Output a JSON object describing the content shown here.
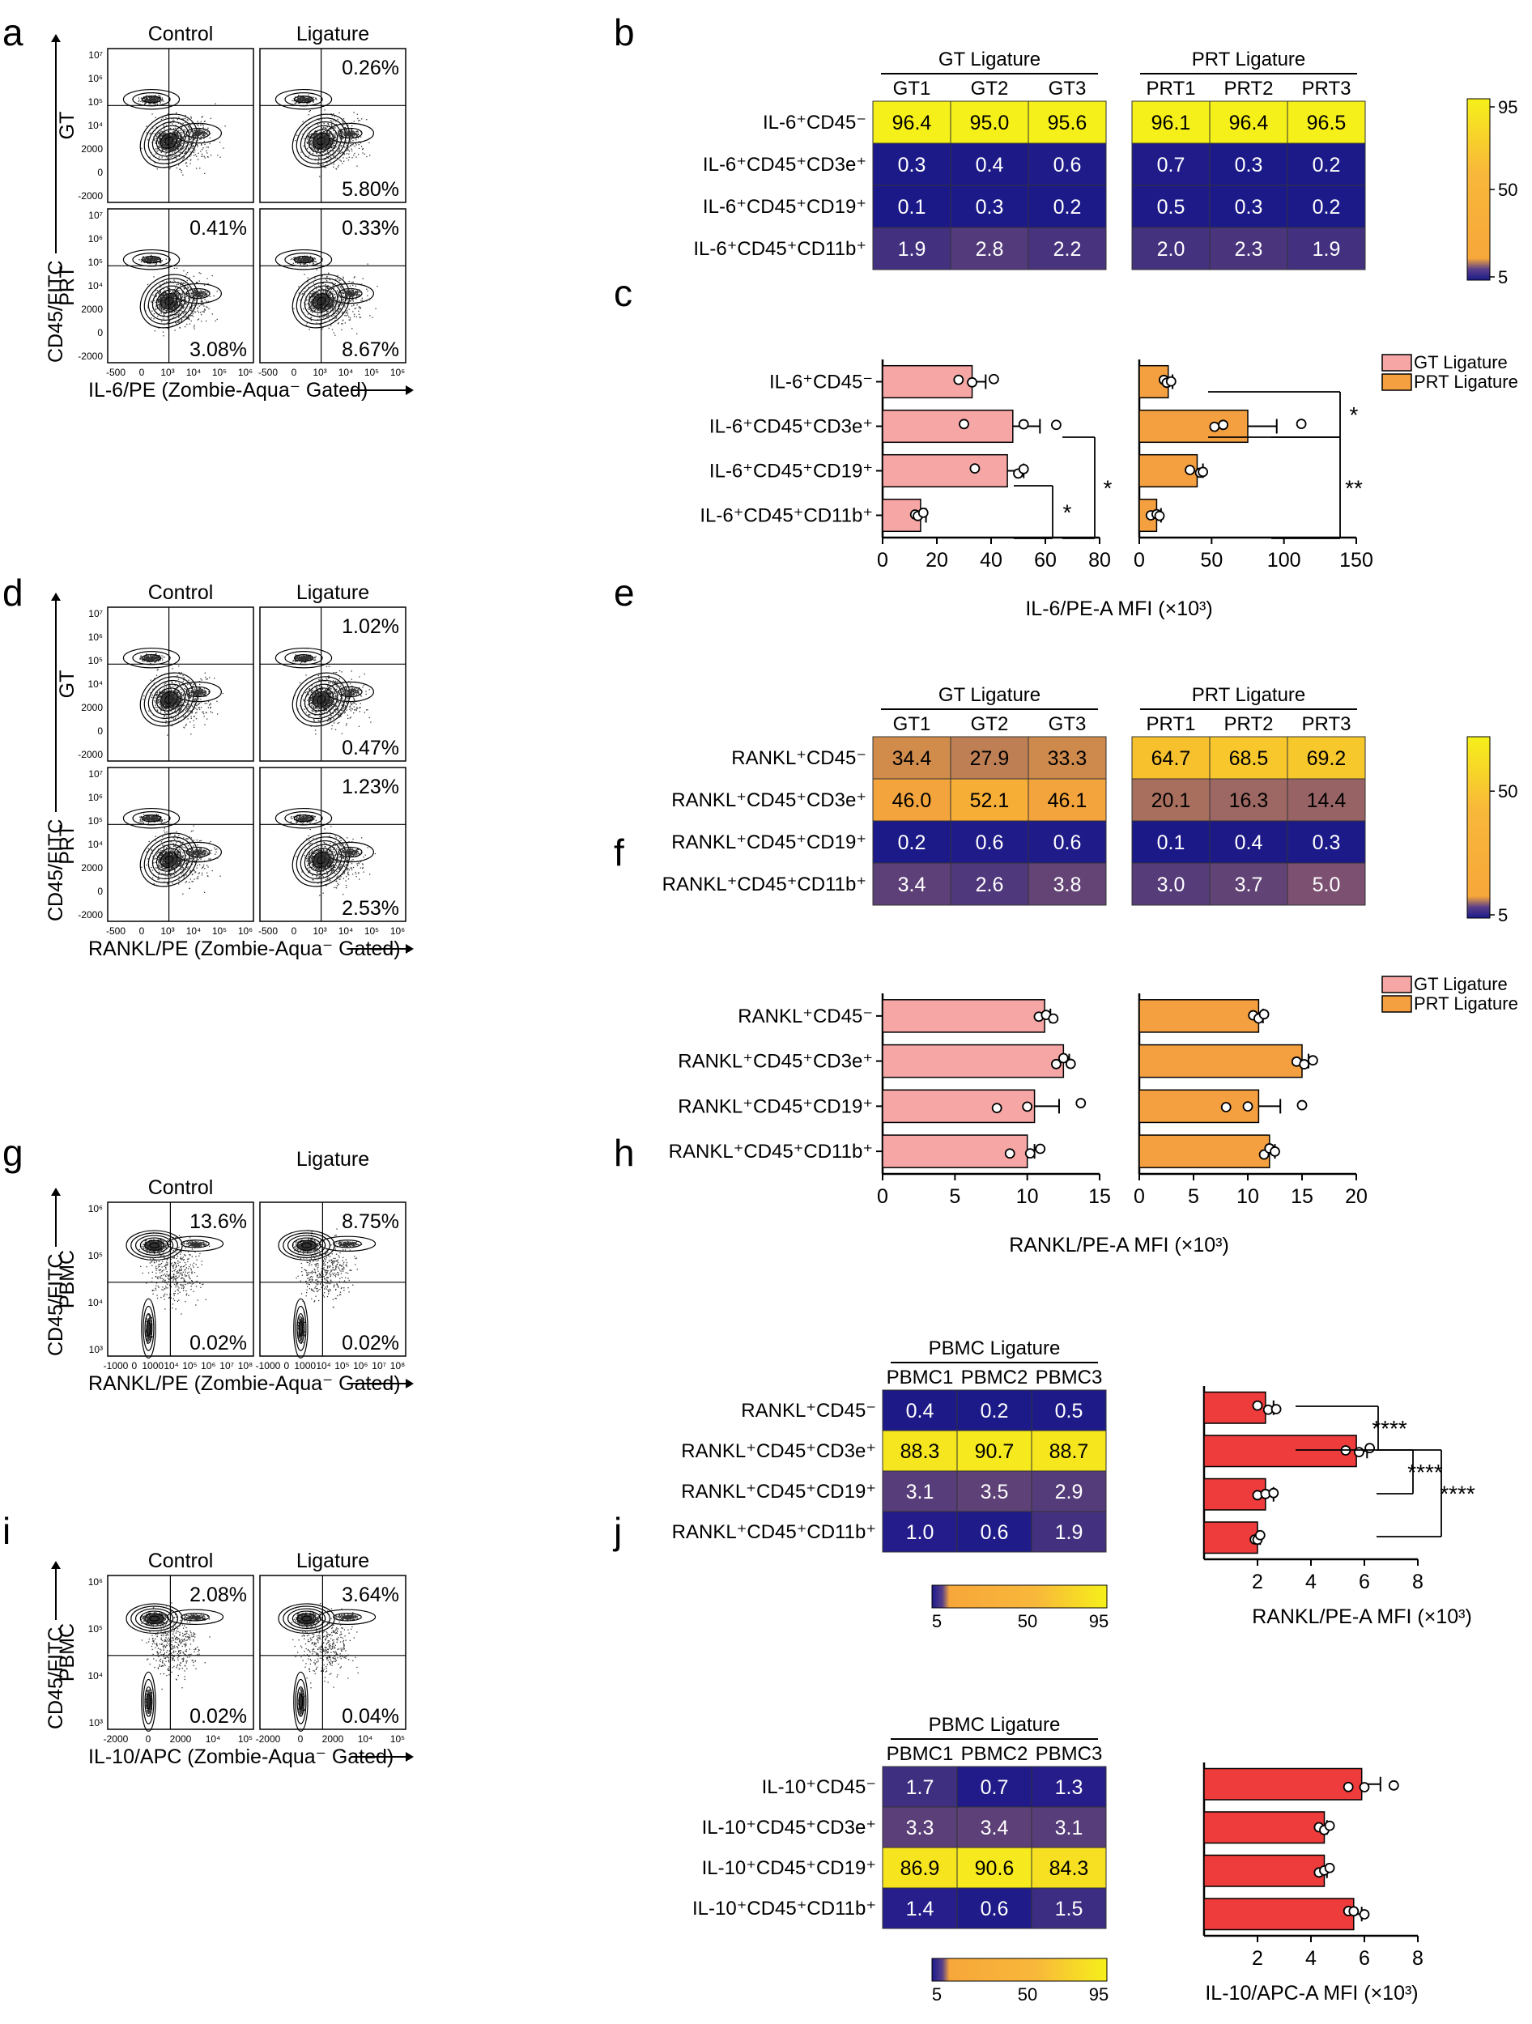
{
  "colors": {
    "gt_bar": "#f7a6a6",
    "prt_bar": "#f5a040",
    "pbmc_bar": "#ee3b3b",
    "heat_low": "#1b1b8a",
    "heat_mid": "#f7a73a",
    "heat_high": "#f6f01a"
  },
  "panel_letters": [
    "a",
    "b",
    "c",
    "d",
    "e",
    "f",
    "g",
    "h",
    "i",
    "j"
  ],
  "flow_sections": [
    {
      "letter": "a",
      "headers": [
        "Control",
        "Ligature"
      ],
      "rows": [
        "GT",
        "PRT"
      ],
      "xlabel": "IL-6/PE (Zombie-Aqua⁻ Gated)",
      "ylabel": "CD45/FITC",
      "yticks": [
        "10⁷",
        "10⁶",
        "10⁵",
        "10⁴",
        "2000",
        "0",
        "-2000"
      ],
      "xticks": [
        "-500",
        "0",
        "10³",
        "10⁴",
        "10⁵",
        "10⁶"
      ],
      "percents": [
        [
          "",
          "",
          "",
          ""
        ],
        [
          "0.26%",
          "",
          "",
          "5.80%"
        ],
        [
          "0.41%",
          "",
          "",
          "3.08%"
        ],
        [
          "0.33%",
          "",
          "",
          "8.67%"
        ]
      ]
    },
    {
      "letter": "d",
      "headers": [
        "Control",
        "Ligature"
      ],
      "rows": [
        "GT",
        "PRT"
      ],
      "xlabel": "RANKL/PE (Zombie-Aqua⁻ Gated)",
      "ylabel": "CD45/FITC",
      "yticks": [
        "10⁷",
        "10⁶",
        "10⁵",
        "10⁴",
        "2000",
        "0",
        "-2000"
      ],
      "xticks": [
        "-500",
        "0",
        "10³",
        "10⁴",
        "10⁵",
        "10⁶"
      ],
      "percents": [
        [
          "",
          "",
          "",
          ""
        ],
        [
          "1.02%",
          "",
          "",
          "0.47%"
        ],
        [
          "",
          "",
          "",
          ""
        ],
        [
          "1.23%",
          "",
          "",
          "2.53%"
        ]
      ]
    },
    {
      "letter": "g",
      "headers": [
        "Control",
        "Ligature"
      ],
      "rows": [
        "PBMC"
      ],
      "xlabel": "RANKL/PE (Zombie-Aqua⁻ Gated)",
      "ylabel": "CD45/FITC",
      "yticks": [
        "10⁶",
        "10⁵",
        "10⁴",
        "10³"
      ],
      "xticks": [
        "-1000",
        "0",
        "1000",
        "10⁴",
        "10⁵",
        "10⁶",
        "10⁷",
        "10⁸"
      ],
      "percents": [
        [
          "13.6%",
          "0.02%"
        ],
        [
          "8.75%",
          "0.02%"
        ]
      ]
    },
    {
      "letter": "i",
      "headers": [
        "Control",
        "Ligature"
      ],
      "rows": [
        "PBMC"
      ],
      "xlabel": "IL-10/APC (Zombie-Aqua⁻ Gated)",
      "ylabel": "CD45/FITC",
      "yticks": [
        "10⁶",
        "10⁵",
        "10⁴",
        "10³"
      ],
      "xticks": [
        "-2000",
        "0",
        "2000",
        "10⁴",
        "10⁵"
      ],
      "percents": [
        [
          "2.08%",
          "0.02%"
        ],
        [
          "3.64%",
          "0.04%"
        ]
      ]
    }
  ],
  "chart_data": [
    {
      "type": "heatmap",
      "panel": "b",
      "groups": [
        {
          "label": "GT Ligature",
          "columns": [
            "GT1",
            "GT2",
            "GT3"
          ]
        },
        {
          "label": "PRT Ligature",
          "columns": [
            "PRT1",
            "PRT2",
            "PRT3"
          ]
        }
      ],
      "rows": [
        "IL-6⁺CD45⁻",
        "IL-6⁺CD45⁺CD3e⁺",
        "IL-6⁺CD45⁺CD19⁺",
        "IL-6⁺CD45⁺CD11b⁺"
      ],
      "values": [
        [
          96.4,
          95.0,
          95.6,
          96.1,
          96.4,
          96.5
        ],
        [
          0.3,
          0.4,
          0.6,
          0.7,
          0.3,
          0.2
        ],
        [
          0.1,
          0.3,
          0.2,
          0.5,
          0.3,
          0.2
        ],
        [
          1.9,
          2.8,
          2.2,
          2.0,
          2.3,
          1.9
        ]
      ],
      "colorbar_ticks": [
        "95",
        "50",
        "5"
      ]
    },
    {
      "type": "bar",
      "panel": "c",
      "orientation": "horizontal",
      "categories": [
        "IL-6⁺CD45⁻",
        "IL-6⁺CD45⁺CD3e⁺",
        "IL-6⁺CD45⁺CD19⁺",
        "IL-6⁺CD45⁺CD11b⁺"
      ],
      "series": [
        {
          "name": "GT Ligature",
          "values": [
            33,
            48,
            46,
            14
          ],
          "err": [
            5,
            10,
            6,
            2
          ],
          "points": [
            [
              28,
              33,
              41
            ],
            [
              30,
              52,
              64
            ],
            [
              34,
              50,
              52
            ],
            [
              12,
              13,
              15
            ]
          ],
          "xlim": [
            0,
            80
          ],
          "xticks": [
            "0",
            "20",
            "40",
            "60",
            "80"
          ]
        },
        {
          "name": "PRT Ligature",
          "values": [
            20,
            75,
            40,
            12
          ],
          "err": [
            3,
            20,
            4,
            3
          ],
          "points": [
            [
              17,
              19,
              22
            ],
            [
              52,
              58,
              112
            ],
            [
              35,
              42,
              44
            ],
            [
              8,
              12,
              14
            ]
          ],
          "xlim": [
            0,
            150
          ],
          "xticks": [
            "0",
            "50",
            "100",
            "150"
          ]
        }
      ],
      "significance": [
        {
          "series": 0,
          "from": 1,
          "to": 3,
          "label": "*"
        },
        {
          "series": 0,
          "from": 2,
          "to": 3,
          "label": "*"
        },
        {
          "series": 1,
          "from": 0,
          "to": 1,
          "label": "*"
        },
        {
          "series": 1,
          "from": 1,
          "to": 3,
          "label": "**"
        }
      ],
      "xlabel": "IL-6/PE-A MFI (×10³)",
      "legend": "top-right"
    },
    {
      "type": "heatmap",
      "panel": "e",
      "groups": [
        {
          "label": "GT Ligature",
          "columns": [
            "GT1",
            "GT2",
            "GT3"
          ]
        },
        {
          "label": "PRT Ligature",
          "columns": [
            "PRT1",
            "PRT2",
            "PRT3"
          ]
        }
      ],
      "rows": [
        "RANKL⁺CD45⁻",
        "RANKL⁺CD45⁺CD3e⁺",
        "RANKL⁺CD45⁺CD19⁺",
        "RANKL⁺CD45⁺CD11b⁺"
      ],
      "values": [
        [
          34.4,
          27.9,
          33.3,
          64.7,
          68.5,
          69.2
        ],
        [
          46.0,
          52.1,
          46.1,
          20.1,
          16.3,
          14.4
        ],
        [
          0.2,
          0.6,
          0.6,
          0.1,
          0.4,
          0.3
        ],
        [
          3.4,
          2.6,
          3.8,
          3.0,
          3.7,
          5.0
        ]
      ],
      "colorbar_ticks": [
        "50",
        "5"
      ]
    },
    {
      "type": "bar",
      "panel": "f",
      "orientation": "horizontal",
      "categories": [
        "RANKL⁺CD45⁻",
        "RANKL⁺CD45⁺CD3e⁺",
        "RANKL⁺CD45⁺CD19⁺",
        "RANKL⁺CD45⁺CD11b⁺"
      ],
      "series": [
        {
          "name": "GT Ligature",
          "values": [
            11.2,
            12.5,
            10.5,
            10.0
          ],
          "err": [
            0.4,
            0.4,
            1.7,
            0.5
          ],
          "points": [
            [
              10.8,
              11.3,
              11.8
            ],
            [
              12.0,
              12.5,
              13.0
            ],
            [
              7.9,
              10.0,
              13.7
            ],
            [
              8.8,
              10.2,
              10.9
            ]
          ],
          "xlim": [
            0,
            15
          ],
          "xticks": [
            "0",
            "5",
            "10",
            "15"
          ]
        },
        {
          "name": "PRT Ligature",
          "values": [
            11.0,
            15.0,
            11.0,
            12.0
          ],
          "err": [
            0.4,
            0.6,
            2.0,
            0.5
          ],
          "points": [
            [
              10.5,
              11.0,
              11.5
            ],
            [
              14.5,
              15.2,
              16.0
            ],
            [
              8.0,
              10.0,
              15.0
            ],
            [
              11.5,
              12.0,
              12.5
            ]
          ],
          "xlim": [
            0,
            20
          ],
          "xticks": [
            "0",
            "5",
            "10",
            "15",
            "20"
          ]
        }
      ],
      "xlabel": "RANKL/PE-A MFI (×10³)",
      "legend": "top-right"
    },
    {
      "type": "heatmap",
      "panel": "h",
      "groups": [
        {
          "label": "PBMC Ligature",
          "columns": [
            "PBMC1",
            "PBMC2",
            "PBMC3"
          ]
        }
      ],
      "rows": [
        "RANKL⁺CD45⁻",
        "RANKL⁺CD45⁺CD3e⁺",
        "RANKL⁺CD45⁺CD19⁺",
        "RANKL⁺CD45⁺CD11b⁺"
      ],
      "values": [
        [
          0.4,
          0.2,
          0.5
        ],
        [
          88.3,
          90.7,
          88.7
        ],
        [
          3.1,
          3.5,
          2.9
        ],
        [
          1.0,
          0.6,
          1.9
        ]
      ],
      "colorbar_ticks": [
        "5",
        "50",
        "95"
      ]
    },
    {
      "type": "bar",
      "panel": "h-bar",
      "orientation": "horizontal",
      "categories": [
        "RANKL⁺CD45⁻",
        "RANKL⁺CD45⁺CD3e⁺",
        "RANKL⁺CD45⁺CD19⁺",
        "RANKL⁺CD45⁺CD11b⁺"
      ],
      "series": [
        {
          "name": "PBMC",
          "values": [
            2.3,
            5.7,
            2.3,
            2.0
          ],
          "err": [
            0.3,
            0.4,
            0.3,
            0.1
          ],
          "points": [
            [
              2.0,
              2.4,
              2.7
            ],
            [
              5.3,
              5.8,
              6.2
            ],
            [
              2.0,
              2.3,
              2.6
            ],
            [
              1.9,
              2.0,
              2.1
            ]
          ],
          "xlim": [
            0,
            8
          ],
          "xticks": [
            "2",
            "4",
            "6",
            "8"
          ]
        }
      ],
      "significance": [
        {
          "series": 0,
          "from": 0,
          "to": 1,
          "label": "****"
        },
        {
          "series": 0,
          "from": 1,
          "to": 2,
          "label": "****"
        },
        {
          "series": 0,
          "from": 1,
          "to": 3,
          "label": "****"
        }
      ],
      "xlabel": "RANKL/PE-A MFI (×10³)"
    },
    {
      "type": "heatmap",
      "panel": "j",
      "groups": [
        {
          "label": "PBMC Ligature",
          "columns": [
            "PBMC1",
            "PBMC2",
            "PBMC3"
          ]
        }
      ],
      "rows": [
        "IL-10⁺CD45⁻",
        "IL-10⁺CD45⁺CD3e⁺",
        "IL-10⁺CD45⁺CD19⁺",
        "IL-10⁺CD45⁺CD11b⁺"
      ],
      "values": [
        [
          1.7,
          0.7,
          1.3
        ],
        [
          3.3,
          3.4,
          3.1
        ],
        [
          86.9,
          90.6,
          84.3
        ],
        [
          1.4,
          0.6,
          1.5
        ]
      ],
      "colorbar_ticks": [
        "5",
        "50",
        "95"
      ]
    },
    {
      "type": "bar",
      "panel": "j-bar",
      "orientation": "horizontal",
      "categories": [
        "IL-10⁺CD45⁻",
        "IL-10⁺CD45⁺CD3e⁺",
        "IL-10⁺CD45⁺CD19⁺",
        "IL-10⁺CD45⁺CD11b⁺"
      ],
      "series": [
        {
          "name": "PBMC",
          "values": [
            5.9,
            4.5,
            4.5,
            5.6
          ],
          "err": [
            0.7,
            0.1,
            0.1,
            0.3
          ],
          "points": [
            [
              5.4,
              6.0,
              7.1
            ],
            [
              4.3,
              4.5,
              4.7
            ],
            [
              4.3,
              4.5,
              4.7
            ],
            [
              5.4,
              5.6,
              6.0
            ]
          ],
          "xlim": [
            0,
            8
          ],
          "xticks": [
            "2",
            "4",
            "6",
            "8"
          ]
        }
      ],
      "xlabel": "IL-10/APC-A MFI (×10³)"
    }
  ]
}
